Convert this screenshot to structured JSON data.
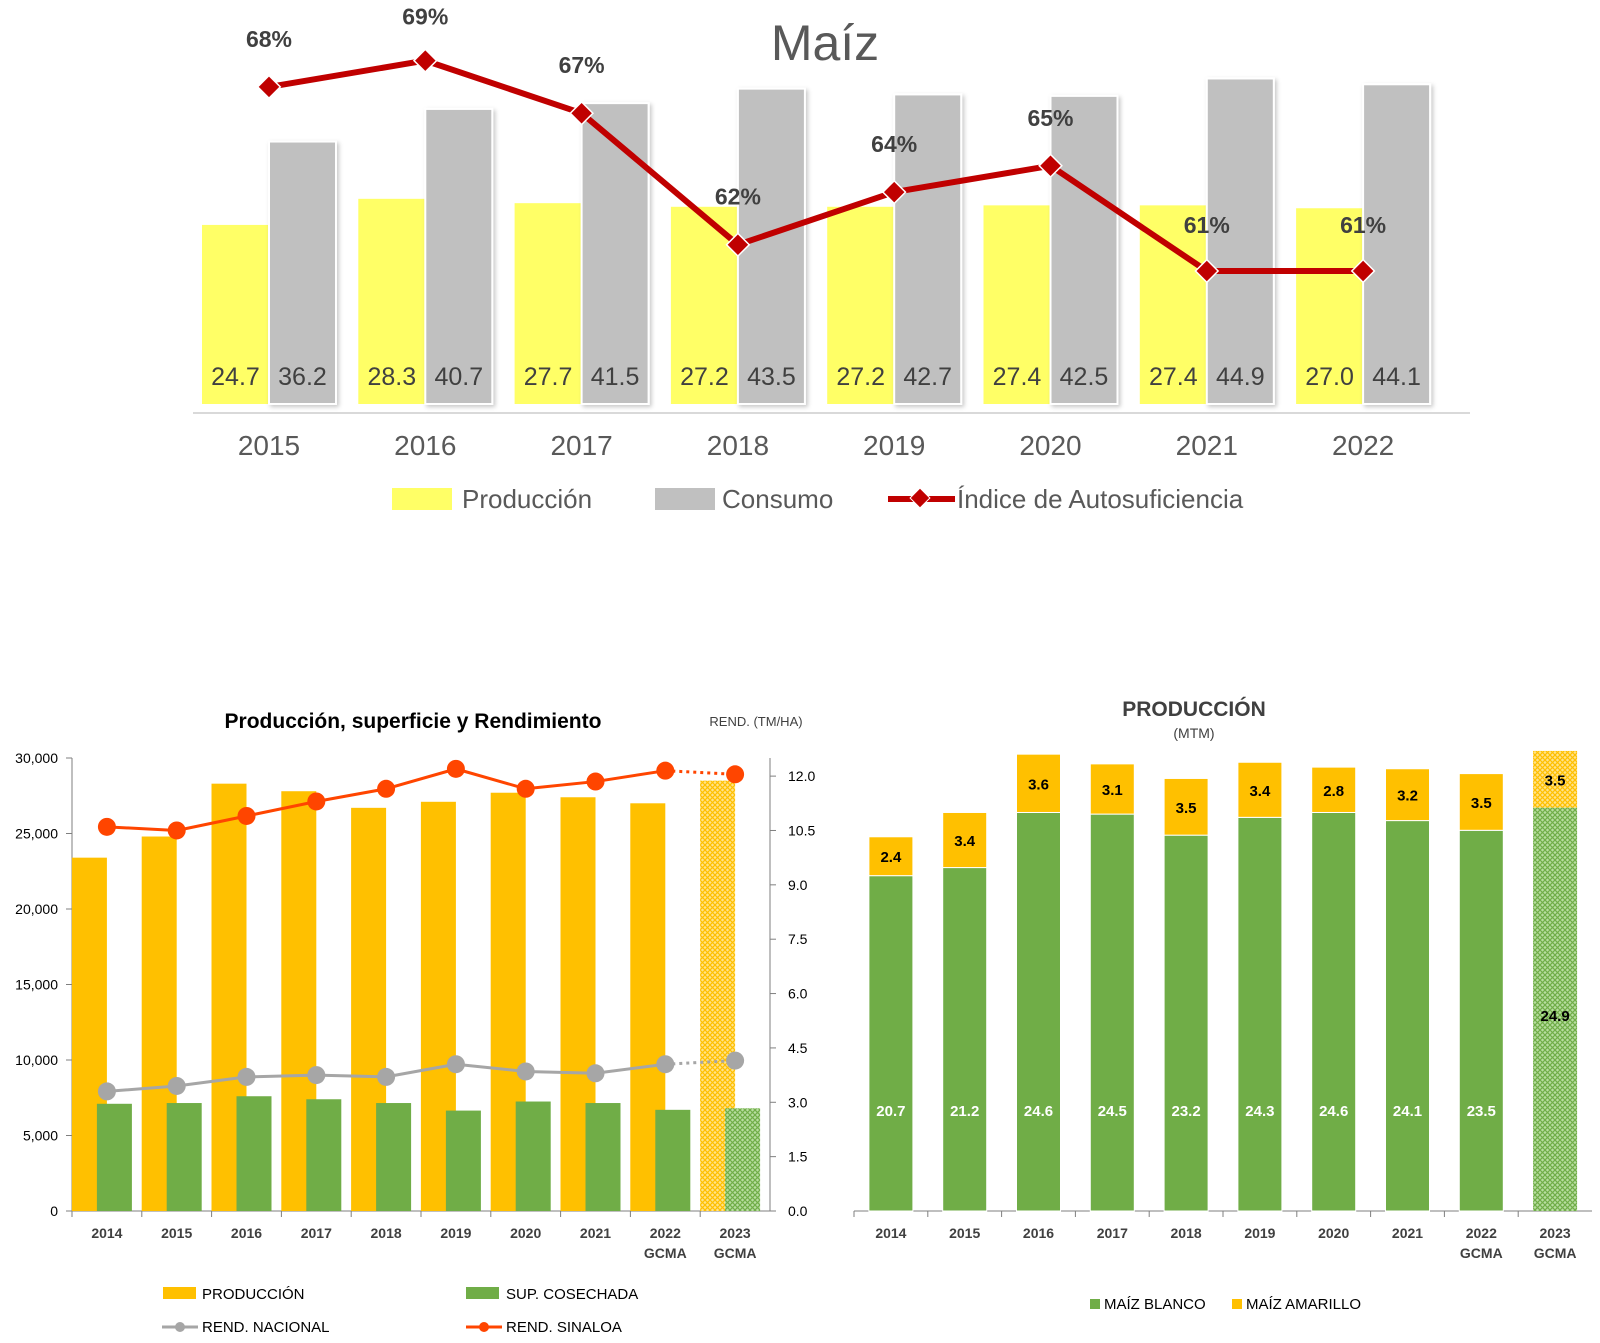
{
  "chart_data": [
    {
      "type": "bar",
      "title": "Maíz",
      "categories": [
        "2015",
        "2016",
        "2017",
        "2018",
        "2019",
        "2020",
        "2021",
        "2022"
      ],
      "series": [
        {
          "name": "Producción",
          "kind": "bar",
          "color": "#FFFF66",
          "values": [
            24.7,
            28.3,
            27.7,
            27.2,
            27.2,
            27.4,
            27.4,
            27.0
          ],
          "labels": [
            "24.7",
            "28.3",
            "27.7",
            "27.2",
            "27.2",
            "27.4",
            "27.4",
            "27.0"
          ]
        },
        {
          "name": "Consumo",
          "kind": "bar",
          "color": "#C0C0C0",
          "values": [
            36.2,
            40.7,
            41.5,
            43.5,
            42.7,
            42.5,
            44.9,
            44.1
          ],
          "labels": [
            "36.2",
            "40.7",
            "41.5",
            "43.5",
            "42.7",
            "42.5",
            "44.9",
            "44.1"
          ]
        },
        {
          "name": "Índice de Autosuficiencia",
          "kind": "line",
          "color": "#C00000",
          "values": [
            68,
            69,
            67,
            62,
            64,
            65,
            61,
            61
          ],
          "labels": [
            "68%",
            "69%",
            "67%",
            "62%",
            "64%",
            "65%",
            "61%",
            "61%"
          ]
        }
      ],
      "legend_position": "bottom"
    },
    {
      "type": "bar",
      "title": "Producción, superficie y Rendimiento",
      "y2_label": "REND. (TM/HA)",
      "categories": [
        "2014",
        "2015",
        "2016",
        "2017",
        "2018",
        "2019",
        "2020",
        "2021",
        "2022 GCMA",
        "2023 GCMA"
      ],
      "category_lines": [
        [
          "2014"
        ],
        [
          "2015"
        ],
        [
          "2016"
        ],
        [
          "2017"
        ],
        [
          "2018"
        ],
        [
          "2019"
        ],
        [
          "2020"
        ],
        [
          "2021"
        ],
        [
          "2022",
          "GCMA"
        ],
        [
          "2023",
          "GCMA"
        ]
      ],
      "ylim": [
        0,
        30000
      ],
      "y_ticks": [
        "0",
        "5,000",
        "10,000",
        "15,000",
        "20,000",
        "25,000",
        "30,000"
      ],
      "y2lim": [
        0,
        12.5
      ],
      "y2_ticks": [
        "0.0",
        "1.5",
        "3.0",
        "4.5",
        "6.0",
        "7.5",
        "9.0",
        "10.5",
        "12.0"
      ],
      "series": [
        {
          "name": "PRODUCCIÓN",
          "kind": "bar",
          "color": "#FFC000",
          "values": [
            23400,
            24800,
            28300,
            27800,
            26700,
            27100,
            27700,
            27400,
            27000,
            28500
          ]
        },
        {
          "name": "SUP. COSECHADA",
          "kind": "bar",
          "color": "#70AD47",
          "values": [
            7100,
            7150,
            7600,
            7400,
            7150,
            6650,
            7250,
            7150,
            6700,
            6800
          ]
        },
        {
          "name": "REND. NACIONAL",
          "kind": "line",
          "axis": "y2",
          "color": "#A6A6A6",
          "values": [
            3.3,
            3.45,
            3.7,
            3.75,
            3.7,
            4.05,
            3.85,
            3.8,
            4.05,
            4.15
          ]
        },
        {
          "name": "REND. SINALOA",
          "kind": "line",
          "axis": "y2",
          "color": "#FF4500",
          "values": [
            10.6,
            10.5,
            10.9,
            11.3,
            11.65,
            12.2,
            11.65,
            11.85,
            12.15,
            12.05
          ]
        }
      ],
      "projected_category": "2023 GCMA",
      "grid": false,
      "legend_position": "bottom"
    },
    {
      "type": "bar",
      "stacked": true,
      "title": "PRODUCCIÓN",
      "subtitle": "(MTM)",
      "categories": [
        "2014",
        "2015",
        "2016",
        "2017",
        "2018",
        "2019",
        "2020",
        "2021",
        "2022 GCMA",
        "2023 GCMA"
      ],
      "category_lines": [
        [
          "2014"
        ],
        [
          "2015"
        ],
        [
          "2016"
        ],
        [
          "2017"
        ],
        [
          "2018"
        ],
        [
          "2019"
        ],
        [
          "2020"
        ],
        [
          "2021"
        ],
        [
          "2022",
          "GCMA"
        ],
        [
          "2023",
          "GCMA"
        ]
      ],
      "series": [
        {
          "name": "MAÍZ BLANCO",
          "color": "#70AD47",
          "values": [
            20.7,
            21.2,
            24.6,
            24.5,
            23.2,
            24.3,
            24.6,
            24.1,
            23.5,
            24.9
          ],
          "labels": [
            "20.7",
            "21.2",
            "24.6",
            "24.5",
            "23.2",
            "24.3",
            "24.6",
            "24.1",
            "23.5",
            "24.9"
          ]
        },
        {
          "name": "MAÍZ AMARILLO",
          "color": "#FFC000",
          "values": [
            2.4,
            3.4,
            3.6,
            3.1,
            3.5,
            3.4,
            2.8,
            3.2,
            3.5,
            3.5
          ],
          "labels": [
            "2.4",
            "3.4",
            "3.6",
            "3.1",
            "3.5",
            "3.4",
            "2.8",
            "3.2",
            "3.5",
            "3.5"
          ]
        }
      ],
      "projected_category": "2023 GCMA",
      "legend_position": "bottom"
    }
  ]
}
